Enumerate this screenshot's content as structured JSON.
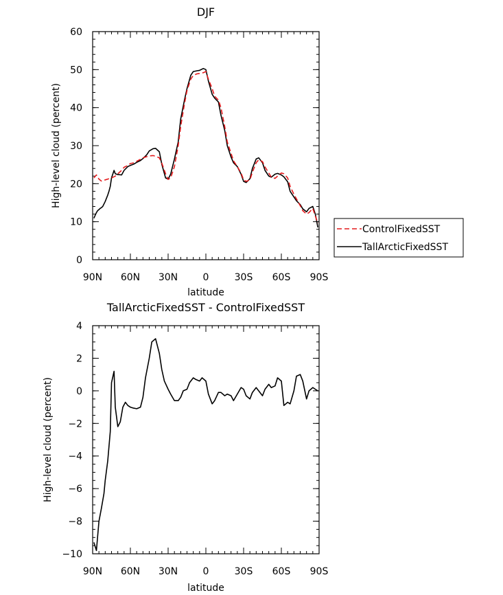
{
  "colors": {
    "control": "#e41a1c",
    "tall": "#000000",
    "axis": "#000000"
  },
  "chart_data": [
    {
      "type": "line",
      "title": "DJF",
      "xlabel": "latitude",
      "ylabel": "High-level cloud (percent)",
      "xlim": [
        90,
        -90
      ],
      "ylim": [
        0,
        60
      ],
      "xticks": [
        90,
        60,
        30,
        0,
        -30,
        -60,
        -90
      ],
      "xtick_labels": [
        "90N",
        "60N",
        "30N",
        "0",
        "30S",
        "60S",
        "90S"
      ],
      "yticks": [
        0,
        10,
        20,
        30,
        40,
        50,
        60
      ],
      "ytick_labels": [
        "0",
        "10",
        "20",
        "30",
        "40",
        "50",
        "60"
      ],
      "legend": {
        "placement": "right",
        "entries": [
          {
            "name": "ControlFixedSST",
            "style": "dashed",
            "color": "#e41a1c"
          },
          {
            "name": "TallArcticFixedSST",
            "style": "solid",
            "color": "#000000"
          }
        ]
      },
      "series": [
        {
          "name": "ControlFixedSST",
          "style": "dashed",
          "color": "#e41a1c",
          "x": [
            89,
            87,
            85,
            83,
            80,
            77,
            75,
            72,
            70,
            67,
            65,
            62,
            60,
            57,
            55,
            52,
            50,
            47,
            45,
            42,
            40,
            37,
            35,
            32,
            30,
            28,
            25,
            22,
            20,
            17,
            15,
            12,
            10,
            7,
            5,
            2,
            0,
            -2,
            -5,
            -7,
            -10,
            -12,
            -15,
            -17,
            -20,
            -22,
            -25,
            -28,
            -30,
            -32,
            -35,
            -37,
            -40,
            -42,
            -45,
            -47,
            -50,
            -52,
            -55,
            -57,
            -60,
            -62,
            -65,
            -67,
            -70,
            -72,
            -75,
            -77,
            -80,
            -82,
            -85,
            -87,
            -89
          ],
          "y": [
            21.5,
            22.3,
            21.2,
            20.7,
            21.0,
            21.3,
            21.5,
            22.0,
            22.6,
            23.5,
            24.3,
            24.8,
            25.3,
            25.5,
            25.9,
            26.4,
            26.8,
            27.1,
            27.3,
            27.4,
            27.2,
            26.8,
            25.4,
            22.6,
            21.1,
            21.5,
            24.5,
            30,
            35,
            41,
            44.5,
            47.5,
            48.5,
            48.9,
            49.0,
            49.2,
            49.5,
            47.5,
            45,
            43,
            42,
            40,
            35,
            31,
            28,
            26,
            24.5,
            22.8,
            21,
            20.6,
            21,
            23,
            25.5,
            26.3,
            25.8,
            24.4,
            22.8,
            21.7,
            21.4,
            22,
            22.8,
            22.6,
            21.5,
            19.3,
            17.2,
            16,
            14.2,
            12.9,
            12,
            12.4,
            13.5,
            11.5,
            9.6
          ]
        },
        {
          "name": "TallArcticFixedSST",
          "style": "solid",
          "color": "#000000",
          "x": [
            89,
            88,
            87,
            86,
            85,
            84,
            83,
            82,
            80,
            79,
            78,
            77,
            76,
            75,
            73,
            72,
            70,
            67,
            65,
            62,
            60,
            57,
            55,
            52,
            50,
            47,
            45,
            42,
            40,
            37,
            35,
            32,
            30,
            28,
            25,
            22,
            20,
            17,
            15,
            12,
            10,
            7,
            5,
            2,
            0,
            -2,
            -5,
            -7,
            -10,
            -12,
            -15,
            -17,
            -20,
            -22,
            -25,
            -28,
            -30,
            -32,
            -35,
            -37,
            -40,
            -42,
            -45,
            -47,
            -50,
            -52,
            -55,
            -57,
            -60,
            -62,
            -65,
            -67,
            -70,
            -72,
            -75,
            -77,
            -80,
            -82,
            -85,
            -87,
            -89
          ],
          "y": [
            10.9,
            11.7,
            12.4,
            12.9,
            13.2,
            13.5,
            13.7,
            14.0,
            15.3,
            16.2,
            17.0,
            18.0,
            19.3,
            21.5,
            23.5,
            22.6,
            22.4,
            22.3,
            23.5,
            24.5,
            24.8,
            25.2,
            25.6,
            26.1,
            26.6,
            27.6,
            28.6,
            29.2,
            29.3,
            28.4,
            25.1,
            21.5,
            21.2,
            22.5,
            26.5,
            31,
            37,
            42,
            45,
            48.5,
            49.5,
            49.7,
            49.8,
            50.3,
            50,
            47,
            43.5,
            42.5,
            41.5,
            38,
            34,
            30,
            27,
            25.5,
            24.5,
            22.5,
            20.6,
            20.3,
            21.3,
            24,
            26.5,
            26.8,
            25.5,
            23.5,
            22,
            21.7,
            22.5,
            22.7,
            22.3,
            21.8,
            20.5,
            18,
            16.5,
            15.5,
            14.5,
            13.4,
            12.6,
            13.5,
            14,
            12,
            8.5
          ]
        }
      ]
    },
    {
      "type": "line",
      "title": "TallArcticFixedSST - ControlFixedSST",
      "xlabel": "latitude",
      "ylabel": "High-level cloud (percent)",
      "xlim": [
        90,
        -90
      ],
      "ylim": [
        -10,
        4
      ],
      "xticks": [
        90,
        60,
        30,
        0,
        -30,
        -60,
        -90
      ],
      "xtick_labels": [
        "90N",
        "60N",
        "30N",
        "0",
        "30S",
        "60S",
        "90S"
      ],
      "yticks": [
        -10,
        -8,
        -6,
        -4,
        -2,
        0,
        2,
        4
      ],
      "ytick_labels": [
        "−10",
        "−8",
        "−6",
        "−4",
        "−2",
        "0",
        "2",
        "4"
      ],
      "series": [
        {
          "style": "solid",
          "color": "#000000",
          "x": [
            89,
            87,
            85,
            83,
            81,
            80,
            78,
            76,
            75,
            73,
            72,
            70,
            68,
            66,
            64,
            62,
            60,
            58,
            55,
            52,
            50,
            48,
            45,
            43,
            40,
            37,
            35,
            33,
            30,
            28,
            25,
            22,
            20,
            18,
            15,
            13,
            10,
            8,
            5,
            3,
            0,
            -2,
            -5,
            -7,
            -10,
            -12,
            -15,
            -17,
            -20,
            -22,
            -25,
            -28,
            -30,
            -32,
            -35,
            -37,
            -40,
            -42,
            -45,
            -47,
            -50,
            -52,
            -55,
            -57,
            -60,
            -62,
            -65,
            -67,
            -70,
            -72,
            -75,
            -77,
            -80,
            -82,
            -85,
            -87,
            -89
          ],
          "y": [
            -9.3,
            -9.8,
            -8.0,
            -7.2,
            -6.3,
            -5.5,
            -4.3,
            -2.5,
            0.5,
            1.2,
            -1.0,
            -2.2,
            -1.9,
            -1.0,
            -0.7,
            -0.9,
            -1.0,
            -1.05,
            -1.1,
            -1.0,
            -0.4,
            0.8,
            2.0,
            3.0,
            3.2,
            2.3,
            1.3,
            0.6,
            0.1,
            -0.2,
            -0.6,
            -0.6,
            -0.4,
            0.0,
            0.1,
            0.5,
            0.8,
            0.7,
            0.6,
            0.8,
            0.6,
            -0.2,
            -0.8,
            -0.6,
            -0.1,
            -0.1,
            -0.3,
            -0.2,
            -0.3,
            -0.6,
            -0.2,
            0.2,
            0.1,
            -0.3,
            -0.5,
            -0.1,
            0.2,
            0.0,
            -0.3,
            0.1,
            0.4,
            0.2,
            0.3,
            0.8,
            0.6,
            -0.9,
            -0.7,
            -0.8,
            0.0,
            0.9,
            1.0,
            0.6,
            -0.5,
            0.0,
            0.2,
            0.1,
            0.0
          ]
        }
      ]
    }
  ]
}
